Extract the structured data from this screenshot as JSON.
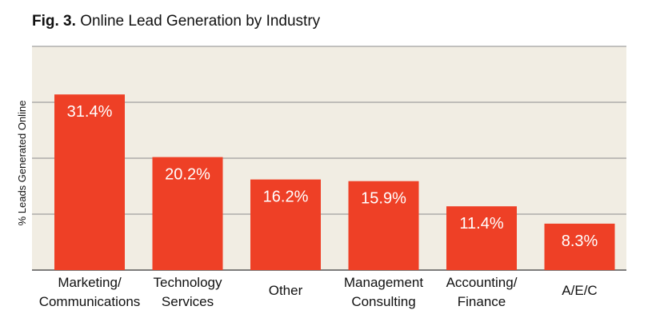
{
  "figure": {
    "number": "Fig. 3.",
    "title": "Online Lead Generation by Industry"
  },
  "colors": {
    "bar": "#ee4026",
    "plot_background": "#f1ede3",
    "gridline": "#8c8c8c"
  },
  "chart_data": {
    "type": "bar",
    "title": "Online Lead Generation by Industry",
    "xlabel": "",
    "ylabel": "% Leads Generated Online",
    "categories": [
      [
        "Marketing/",
        "Communications"
      ],
      [
        "Technology",
        "Services"
      ],
      [
        "Other"
      ],
      [
        "Management",
        "Consulting"
      ],
      [
        "Accounting/",
        "Finance"
      ],
      [
        "A/E/C"
      ]
    ],
    "values": [
      31.4,
      20.2,
      16.2,
      15.9,
      11.4,
      8.3
    ],
    "data_labels": [
      "31.4%",
      "20.2%",
      "16.2%",
      "15.9%",
      "11.4%",
      "8.3%"
    ],
    "ylim": [
      0,
      40
    ],
    "grid": true,
    "legend": "none"
  }
}
